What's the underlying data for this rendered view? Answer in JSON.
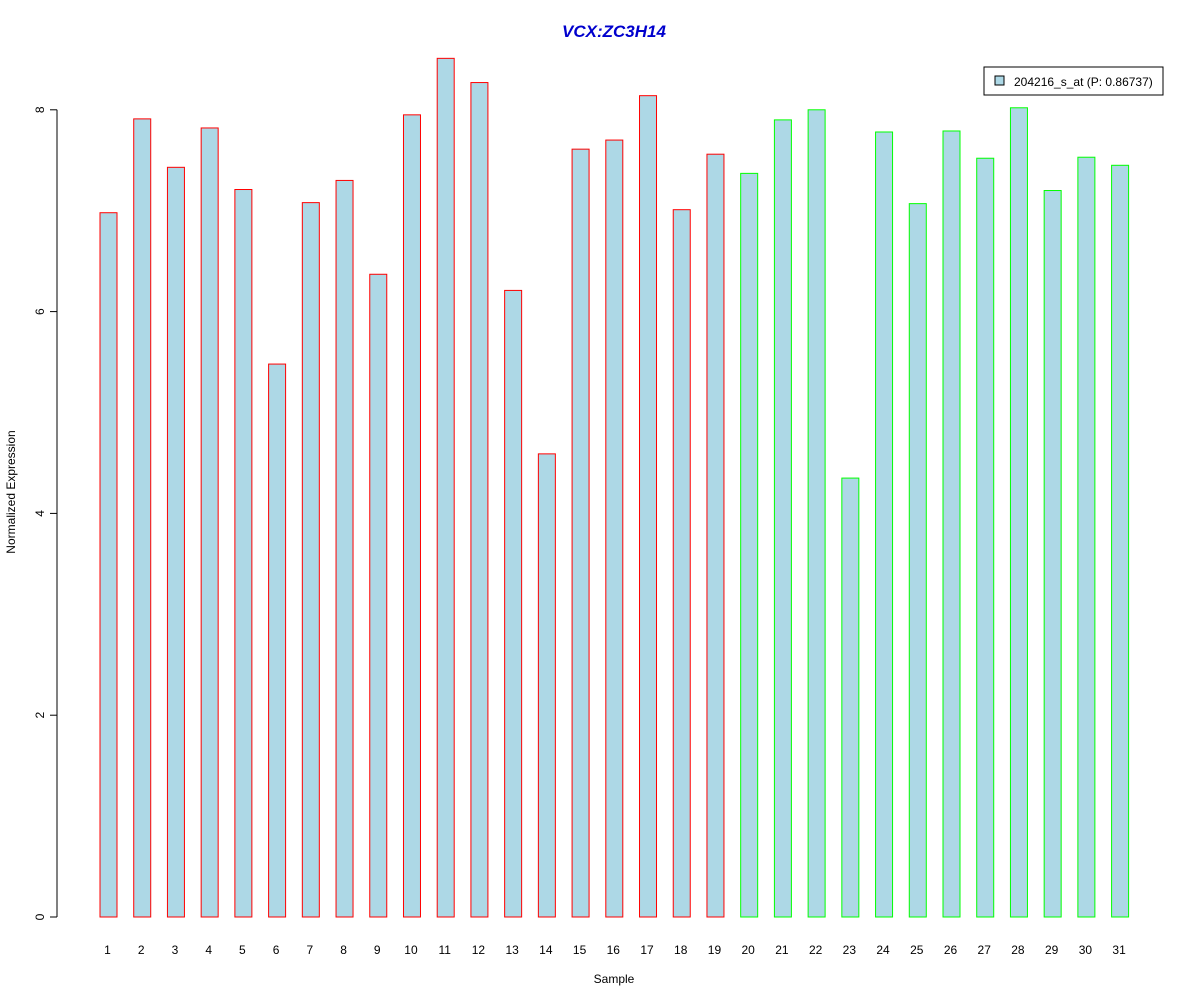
{
  "chart_data": {
    "type": "bar",
    "title": "VCX:ZC3H14",
    "xlabel": "Sample",
    "ylabel": "Normalized Expression",
    "categories": [
      "1",
      "2",
      "3",
      "4",
      "5",
      "6",
      "7",
      "8",
      "9",
      "10",
      "11",
      "12",
      "13",
      "14",
      "15",
      "16",
      "17",
      "18",
      "19",
      "20",
      "21",
      "22",
      "23",
      "24",
      "25",
      "26",
      "27",
      "28",
      "29",
      "30",
      "31"
    ],
    "values": [
      6.98,
      7.91,
      7.43,
      7.82,
      7.21,
      5.48,
      7.08,
      7.3,
      6.37,
      7.95,
      8.51,
      8.27,
      6.21,
      4.59,
      7.61,
      7.7,
      8.14,
      7.01,
      7.56,
      7.37,
      7.9,
      8.0,
      4.35,
      7.78,
      7.07,
      7.79,
      7.52,
      8.02,
      7.2,
      7.53,
      7.45
    ],
    "groups": [
      "red",
      "red",
      "red",
      "red",
      "red",
      "red",
      "red",
      "red",
      "red",
      "red",
      "red",
      "red",
      "red",
      "red",
      "red",
      "red",
      "red",
      "red",
      "red",
      "green",
      "green",
      "green",
      "green",
      "green",
      "green",
      "green",
      "green",
      "green",
      "green",
      "green",
      "green"
    ],
    "ylim": [
      0,
      8.5
    ],
    "yticks": [
      "0",
      "2",
      "4",
      "6",
      "8"
    ],
    "grid": false,
    "legend": {
      "placement": "top-right",
      "entries": [
        "204216_s_at (P: 0.86737)"
      ]
    },
    "colors": {
      "bar_fill": "#add8e6",
      "border_group_1": "#ff0000",
      "border_group_2": "#00ff00",
      "title": "#0000cd",
      "axis": "#000000"
    }
  }
}
